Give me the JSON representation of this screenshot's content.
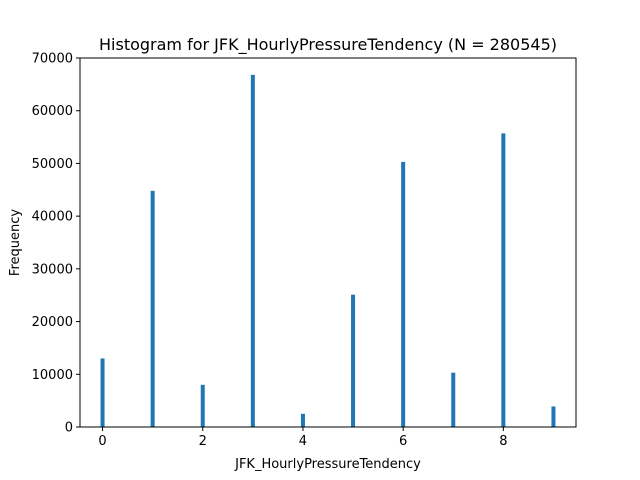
{
  "chart_data": {
    "type": "bar",
    "title": "Histogram for JFK_HourlyPressureTendency (N = 280545)",
    "xlabel": "JFK_HourlyPressureTendency",
    "ylabel": "Frequency",
    "xlim": [
      -0.45,
      9.45
    ],
    "ylim": [
      0,
      70000
    ],
    "xticks": [
      0,
      2,
      4,
      6,
      8
    ],
    "yticks": [
      0,
      10000,
      20000,
      30000,
      40000,
      50000,
      60000,
      70000
    ],
    "bar_color": "#1f77b4",
    "grid": false,
    "legend": false,
    "x": [
      0,
      1,
      2,
      3,
      4,
      5,
      6,
      7,
      8,
      9
    ],
    "values": [
      13000,
      44800,
      8000,
      66800,
      2500,
      25100,
      50300,
      10300,
      55700,
      3900
    ]
  }
}
